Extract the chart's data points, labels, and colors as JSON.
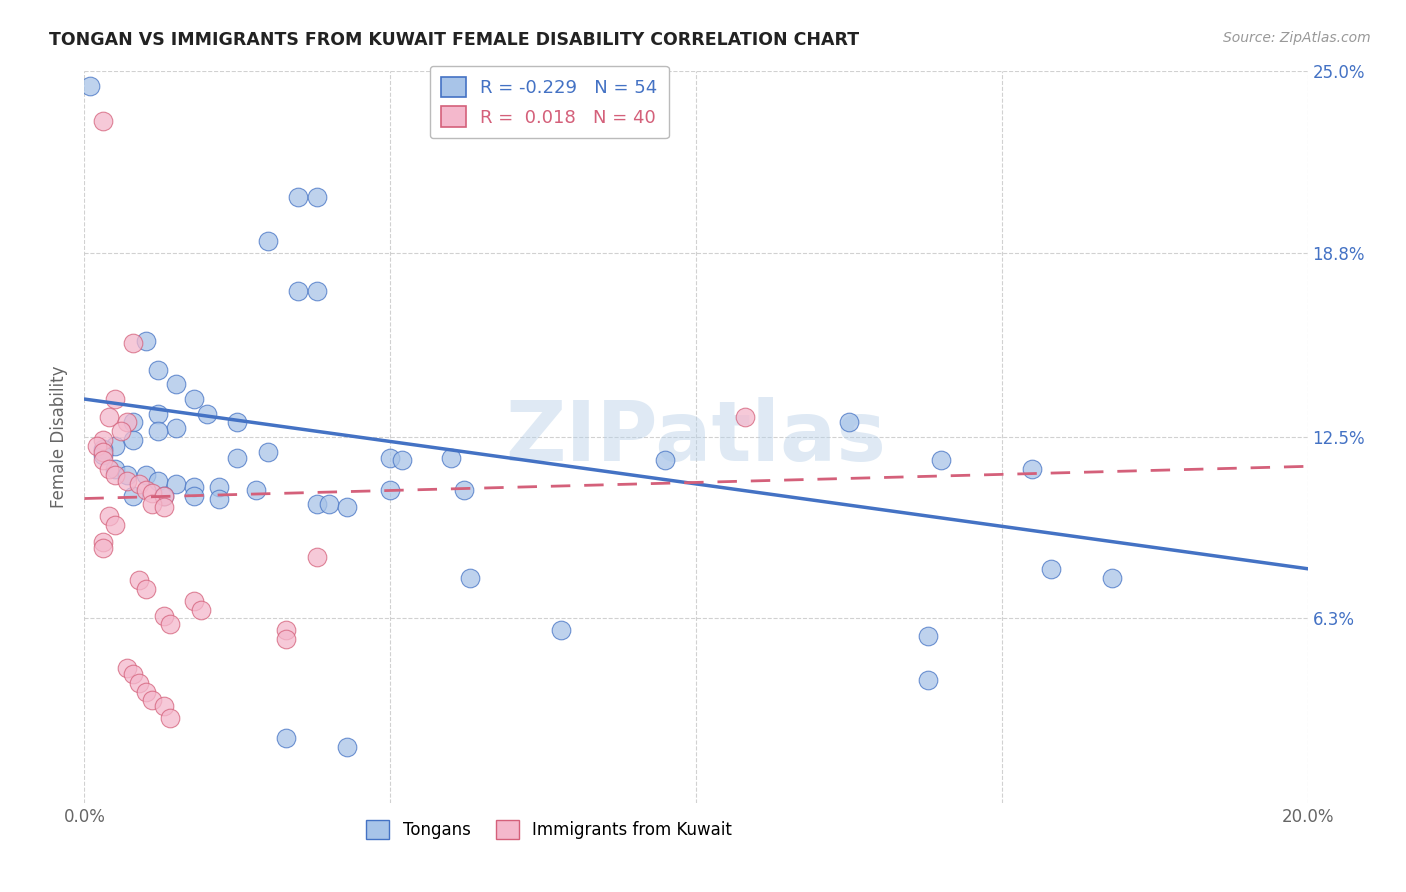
{
  "title": "TONGAN VS IMMIGRANTS FROM KUWAIT FEMALE DISABILITY CORRELATION CHART",
  "source": "Source: ZipAtlas.com",
  "ylabel": "Female Disability",
  "xlim": [
    0.0,
    0.2
  ],
  "ylim": [
    0.0,
    0.25
  ],
  "yticks": [
    0.063,
    0.125,
    0.188,
    0.25
  ],
  "ytick_labels": [
    "6.3%",
    "12.5%",
    "18.8%",
    "25.0%"
  ],
  "xticks": [
    0.0,
    0.05,
    0.1,
    0.15,
    0.2
  ],
  "xtick_labels": [
    "0.0%",
    "",
    "",
    "",
    "20.0%"
  ],
  "legend_R1": "-0.229",
  "legend_N1": "54",
  "legend_R2": "0.018",
  "legend_N2": "40",
  "tongan_color": "#a8c4e8",
  "kuwait_color": "#f4b8cc",
  "tongan_line_color": "#4472c4",
  "kuwait_line_color": "#d4607a",
  "background_color": "#ffffff",
  "watermark": "ZIPatlas",
  "tongan_scatter": [
    [
      0.001,
      0.245
    ],
    [
      0.035,
      0.207
    ],
    [
      0.038,
      0.207
    ],
    [
      0.03,
      0.192
    ],
    [
      0.035,
      0.175
    ],
    [
      0.038,
      0.175
    ],
    [
      0.01,
      0.158
    ],
    [
      0.012,
      0.148
    ],
    [
      0.015,
      0.143
    ],
    [
      0.018,
      0.138
    ],
    [
      0.012,
      0.133
    ],
    [
      0.02,
      0.133
    ],
    [
      0.025,
      0.13
    ],
    [
      0.008,
      0.13
    ],
    [
      0.015,
      0.128
    ],
    [
      0.012,
      0.127
    ],
    [
      0.008,
      0.124
    ],
    [
      0.005,
      0.122
    ],
    [
      0.003,
      0.121
    ],
    [
      0.003,
      0.119
    ],
    [
      0.03,
      0.12
    ],
    [
      0.025,
      0.118
    ],
    [
      0.05,
      0.118
    ],
    [
      0.052,
      0.117
    ],
    [
      0.06,
      0.118
    ],
    [
      0.095,
      0.117
    ],
    [
      0.005,
      0.114
    ],
    [
      0.007,
      0.112
    ],
    [
      0.01,
      0.112
    ],
    [
      0.012,
      0.11
    ],
    [
      0.015,
      0.109
    ],
    [
      0.018,
      0.108
    ],
    [
      0.022,
      0.108
    ],
    [
      0.028,
      0.107
    ],
    [
      0.05,
      0.107
    ],
    [
      0.062,
      0.107
    ],
    [
      0.008,
      0.105
    ],
    [
      0.013,
      0.105
    ],
    [
      0.018,
      0.105
    ],
    [
      0.022,
      0.104
    ],
    [
      0.038,
      0.102
    ],
    [
      0.04,
      0.102
    ],
    [
      0.043,
      0.101
    ],
    [
      0.125,
      0.13
    ],
    [
      0.14,
      0.117
    ],
    [
      0.155,
      0.114
    ],
    [
      0.063,
      0.077
    ],
    [
      0.078,
      0.059
    ],
    [
      0.138,
      0.057
    ],
    [
      0.158,
      0.08
    ],
    [
      0.168,
      0.077
    ],
    [
      0.138,
      0.042
    ],
    [
      0.033,
      0.022
    ],
    [
      0.043,
      0.019
    ]
  ],
  "kuwait_scatter": [
    [
      0.003,
      0.233
    ],
    [
      0.008,
      0.157
    ],
    [
      0.005,
      0.138
    ],
    [
      0.004,
      0.132
    ],
    [
      0.007,
      0.13
    ],
    [
      0.006,
      0.127
    ],
    [
      0.003,
      0.124
    ],
    [
      0.002,
      0.122
    ],
    [
      0.003,
      0.12
    ],
    [
      0.003,
      0.117
    ],
    [
      0.004,
      0.114
    ],
    [
      0.005,
      0.112
    ],
    [
      0.007,
      0.11
    ],
    [
      0.009,
      0.109
    ],
    [
      0.01,
      0.107
    ],
    [
      0.011,
      0.106
    ],
    [
      0.013,
      0.105
    ],
    [
      0.011,
      0.102
    ],
    [
      0.013,
      0.101
    ],
    [
      0.004,
      0.098
    ],
    [
      0.005,
      0.095
    ],
    [
      0.003,
      0.089
    ],
    [
      0.003,
      0.087
    ],
    [
      0.038,
      0.084
    ],
    [
      0.009,
      0.076
    ],
    [
      0.01,
      0.073
    ],
    [
      0.018,
      0.069
    ],
    [
      0.019,
      0.066
    ],
    [
      0.013,
      0.064
    ],
    [
      0.014,
      0.061
    ],
    [
      0.033,
      0.059
    ],
    [
      0.033,
      0.056
    ],
    [
      0.108,
      0.132
    ],
    [
      0.007,
      0.046
    ],
    [
      0.008,
      0.044
    ],
    [
      0.009,
      0.041
    ],
    [
      0.01,
      0.038
    ],
    [
      0.011,
      0.035
    ],
    [
      0.013,
      0.033
    ],
    [
      0.014,
      0.029
    ]
  ],
  "tongan_trendline": [
    [
      0.0,
      0.138
    ],
    [
      0.2,
      0.08
    ]
  ],
  "kuwait_trendline": [
    [
      0.0,
      0.104
    ],
    [
      0.2,
      0.115
    ]
  ]
}
